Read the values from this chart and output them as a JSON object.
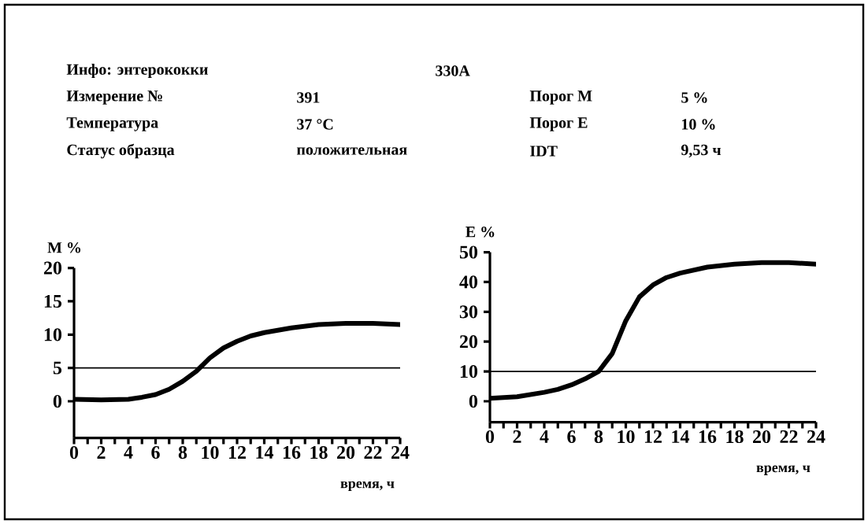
{
  "chart_data": [
    {
      "type": "other",
      "annotations": [
        "Инфо: энтерококки",
        "330A",
        "Измерение №",
        "391",
        "Порог M",
        "5 %",
        "Температура",
        "37 °C",
        "Порог E",
        "10 %",
        "Статус образца",
        "положительная",
        "IDT",
        "9,53 ч"
      ]
    },
    {
      "type": "line",
      "ylabel": "M %",
      "xlabel": "время, ч",
      "color": "#000000",
      "marker": "none",
      "line_style": "solid",
      "x": [
        0,
        2,
        4,
        5,
        6,
        7,
        8,
        9,
        10,
        11,
        12,
        13,
        14,
        16,
        18,
        20,
        22,
        24
      ],
      "values": [
        0.3,
        0.2,
        0.3,
        0.6,
        1,
        1.8,
        3,
        4.5,
        6.5,
        8,
        9,
        9.8,
        10.3,
        11,
        11.5,
        11.7,
        11.7,
        11.5
      ],
      "xlim": [
        0,
        24
      ],
      "xticks": [
        0,
        2,
        4,
        6,
        8,
        10,
        12,
        14,
        16,
        18,
        20,
        22,
        24
      ],
      "ylim": [
        -5.5,
        20
      ],
      "yticks": [
        0,
        5,
        10,
        15,
        20
      ],
      "ref_lines": [
        {
          "axis": "y",
          "value": 5,
          "color": "#000000"
        }
      ]
    },
    {
      "type": "line",
      "ylabel": "E %",
      "xlabel": "время, ч",
      "color": "#000000",
      "marker": "none",
      "line_style": "solid",
      "x": [
        0,
        2,
        4,
        5,
        6,
        7,
        8,
        9,
        10,
        11,
        12,
        13,
        14,
        16,
        18,
        20,
        22,
        24
      ],
      "values": [
        1,
        1.5,
        3,
        4,
        5.5,
        7.5,
        10,
        16,
        27,
        35,
        39,
        41.5,
        43,
        45,
        46,
        46.5,
        46.5,
        46
      ],
      "xlim": [
        0,
        24
      ],
      "xticks": [
        0,
        2,
        4,
        6,
        8,
        10,
        12,
        14,
        16,
        18,
        20,
        22,
        24
      ],
      "ylim": [
        -7,
        50
      ],
      "yticks": [
        0,
        10,
        20,
        30,
        40,
        50
      ],
      "ref_lines": [
        {
          "axis": "y",
          "value": 10,
          "color": "#000000"
        }
      ]
    }
  ]
}
